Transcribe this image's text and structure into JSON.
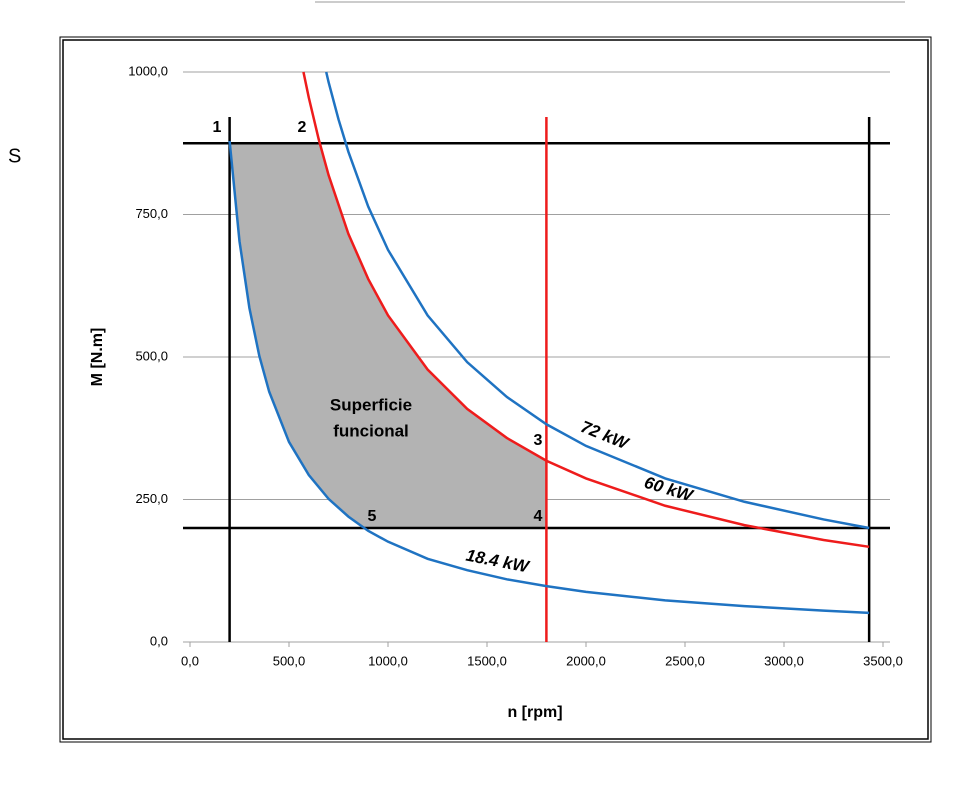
{
  "page": {
    "side_text": "S"
  },
  "chart_data": {
    "type": "line",
    "x_label": "n [rpm]",
    "y_label": "M [N.m]",
    "xlim": [
      0,
      3500
    ],
    "ylim": [
      0,
      1000
    ],
    "xticks": [
      {
        "value": 0,
        "label": "0,0"
      },
      {
        "value": 500,
        "label": "500,0"
      },
      {
        "value": 1000,
        "label": "1000,0"
      },
      {
        "value": 1500,
        "label": "1500,0"
      },
      {
        "value": 2000,
        "label": "2000,0"
      },
      {
        "value": 2500,
        "label": "2500,0"
      },
      {
        "value": 3000,
        "label": "3000,0"
      },
      {
        "value": 3500,
        "label": "3500,0"
      }
    ],
    "yticks": [
      {
        "value": 0,
        "label": "0,0"
      },
      {
        "value": 250,
        "label": "250,0"
      },
      {
        "value": 500,
        "label": "500,0"
      },
      {
        "value": 750,
        "label": "750,0"
      },
      {
        "value": 1000,
        "label": "1000,0"
      }
    ],
    "grid": true,
    "series": [
      {
        "name": "18.4 kW",
        "color": "#1f73c2",
        "x": [
          200,
          250,
          300,
          350,
          400,
          500,
          600,
          700,
          800,
          900,
          1000,
          1200,
          1400,
          1600,
          1800,
          2000,
          2400,
          2800,
          3200,
          3430
        ],
        "values": [
          879,
          703,
          586,
          502,
          439,
          351,
          293,
          251,
          220,
          195,
          176,
          146,
          126,
          110,
          98,
          88,
          73,
          63,
          55,
          51
        ]
      },
      {
        "name": "60 kW",
        "color": "#ee1c1c",
        "x": [
          573,
          600,
          650,
          700,
          800,
          900,
          1000,
          1200,
          1400,
          1600,
          1800,
          2000,
          2400,
          2800,
          3200,
          3430
        ],
        "values": [
          1000,
          955,
          882,
          819,
          716,
          637,
          573,
          478,
          409,
          358,
          318,
          287,
          239,
          205,
          179,
          167
        ]
      },
      {
        "name": "72 kW",
        "color": "#1f73c2",
        "x": [
          688,
          700,
          750,
          800,
          900,
          1000,
          1200,
          1400,
          1600,
          1800,
          2000,
          2400,
          2800,
          3200,
          3430
        ],
        "values": [
          1000,
          982,
          917,
          860,
          764,
          688,
          573,
          491,
          430,
          382,
          344,
          287,
          246,
          215,
          200
        ]
      }
    ],
    "hlines": [
      {
        "y": 875,
        "color": "#000000"
      },
      {
        "y": 200,
        "color": "#000000"
      }
    ],
    "vlines": [
      {
        "x": 200,
        "color": "#000000"
      },
      {
        "x": 1800,
        "color": "#ee1c1c"
      },
      {
        "x": 3430,
        "color": "#000000"
      }
    ],
    "region_color": "#b3b3b3",
    "region_label": [
      "Superficie",
      "funcional"
    ],
    "point_labels": [
      "1",
      "2",
      "3",
      "4",
      "5"
    ]
  }
}
